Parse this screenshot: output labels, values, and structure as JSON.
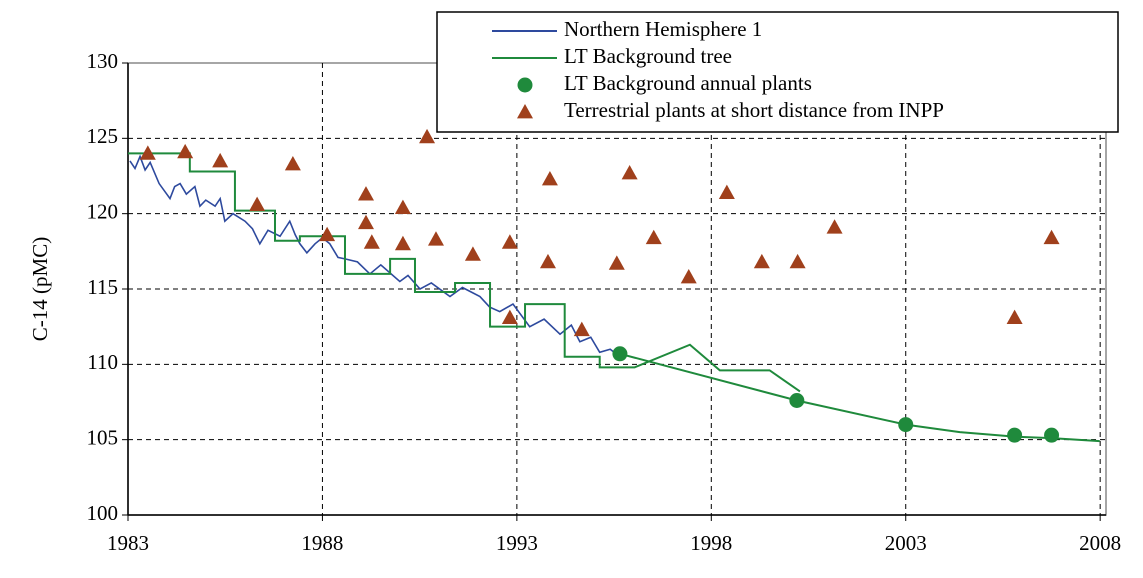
{
  "chart_data": {
    "type": "line",
    "y_label": "C-14 (pMC)",
    "xlim": [
      1983,
      2008.15
    ],
    "xticks": [
      1983,
      1988,
      1993,
      1998,
      2003,
      2008
    ],
    "ylim": [
      100,
      130
    ],
    "yticks": [
      100,
      105,
      110,
      115,
      120,
      125,
      130
    ],
    "grid": true,
    "legend": "top right",
    "series": [
      {
        "name": "Northern Hemisphere 1",
        "color": "#2e4a9e",
        "x": [
          1983.05,
          1983.18,
          1983.31,
          1983.44,
          1983.57,
          1983.8,
          1984.08,
          1984.2,
          1984.34,
          1984.5,
          1984.72,
          1984.85,
          1985.0,
          1985.24,
          1985.37,
          1985.49,
          1985.7,
          1986.01,
          1986.2,
          1986.39,
          1986.6,
          1986.91,
          1987.16,
          1987.3,
          1987.42,
          1987.6,
          1987.81,
          1988.0,
          1988.19,
          1988.4,
          1988.58,
          1988.9,
          1989.22,
          1989.5,
          1989.99,
          1990.2,
          1990.51,
          1990.8,
          1991.28,
          1991.6,
          1992.05,
          1992.3,
          1992.56,
          1992.9,
          1993.33,
          1993.7,
          1994.11,
          1994.4,
          1994.62,
          1994.9,
          1995.13,
          1995.4,
          1995.65
        ],
        "values": [
          123.5,
          123.0,
          123.8,
          122.9,
          123.4,
          122.0,
          121.0,
          121.8,
          122.0,
          121.3,
          121.8,
          120.5,
          120.9,
          120.5,
          121.0,
          119.5,
          120.0,
          119.5,
          119.0,
          118.0,
          118.9,
          118.5,
          119.5,
          118.6,
          118.0,
          117.4,
          118.0,
          118.4,
          118.0,
          117.1,
          117.0,
          116.8,
          116.0,
          116.6,
          115.5,
          115.9,
          115.0,
          115.4,
          114.5,
          115.1,
          114.5,
          113.8,
          113.5,
          114.0,
          112.5,
          113.0,
          112.0,
          112.6,
          111.5,
          111.8,
          110.8,
          111.0,
          110.5
        ]
      },
      {
        "name": "LT Background tree",
        "color": "#1f8a3c",
        "x": [
          1983,
          1984.59,
          1984.59,
          1985.75,
          1985.75,
          1986.78,
          1986.78,
          1987.42,
          1987.42,
          1988.58,
          1988.58,
          1989.74,
          1989.74,
          1990.38,
          1990.38,
          1991.41,
          1991.41,
          1992.31,
          1992.31,
          1993.21,
          1993.21,
          1994.23,
          1994.23,
          1995.13,
          1995.13,
          1996.03,
          1997.45,
          1998.22,
          1999.5,
          2000.28,
          null,
          1995.65,
          2000.2,
          2003.0,
          2004.39,
          2005.8,
          2006.75,
          2007.99
        ],
        "values": [
          124.0,
          124.0,
          122.8,
          122.8,
          120.2,
          120.2,
          118.2,
          118.2,
          118.5,
          118.5,
          116.0,
          116.0,
          117.0,
          117.0,
          114.8,
          114.8,
          115.4,
          115.4,
          112.5,
          112.5,
          114.0,
          114.0,
          110.5,
          110.5,
          109.8,
          109.8,
          111.3,
          109.6,
          109.6,
          108.2,
          null,
          110.7,
          107.6,
          106.0,
          105.5,
          105.2,
          105.1,
          104.9
        ]
      },
      {
        "name": "LT Background annual plants",
        "color": "#1f8a3c",
        "marker": "circle",
        "x": [
          1995.65,
          2000.2,
          2003.0,
          2005.8,
          2006.75
        ],
        "values": [
          110.7,
          107.6,
          106.0,
          105.3,
          105.3
        ]
      },
      {
        "name": "Terrestrial plants at short distance from INPP",
        "color": "#a0401c",
        "marker": "triangle",
        "x": [
          1983.51,
          1984.47,
          1985.37,
          1986.32,
          1987.24,
          1988.12,
          1989.12,
          1989.12,
          1989.27,
          1990.07,
          1990.07,
          1990.69,
          1990.92,
          1991.87,
          1992.82,
          1992.82,
          1993.8,
          1993.85,
          1994.67,
          1995.57,
          1995.9,
          1996.52,
          1997.42,
          1998.4,
          1999.3,
          2000.22,
          2001.17,
          2005.8,
          2006.75
        ],
        "values": [
          124.0,
          124.1,
          123.5,
          120.6,
          123.3,
          118.6,
          121.3,
          119.4,
          118.1,
          120.4,
          118.0,
          125.1,
          118.3,
          117.3,
          113.1,
          118.1,
          116.8,
          122.3,
          112.3,
          116.7,
          122.7,
          118.4,
          115.8,
          121.4,
          116.8,
          116.8,
          119.1,
          113.1,
          118.4
        ]
      }
    ]
  }
}
